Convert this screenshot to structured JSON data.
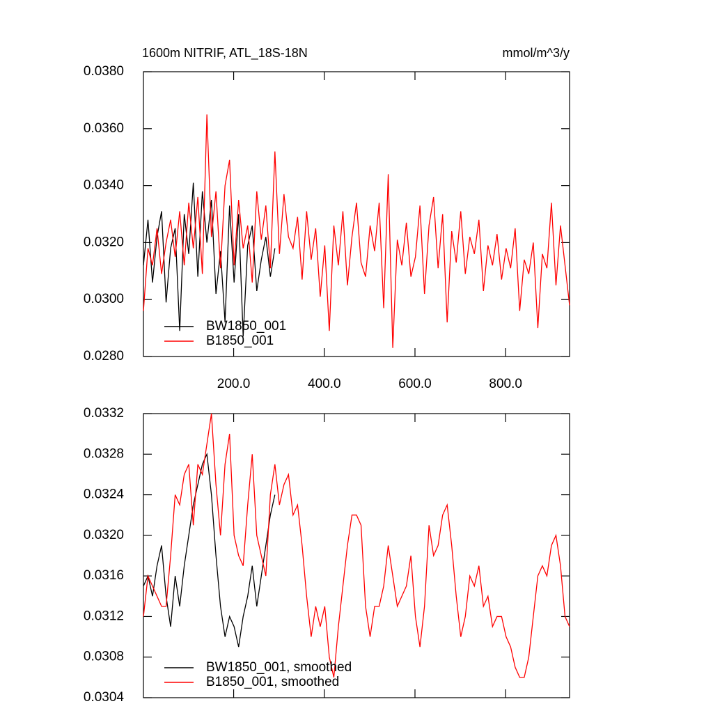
{
  "chart_data": [
    {
      "type": "line",
      "title": "1600m NITRIF, ATL_18S-18N",
      "units": "mmol/m^3/y",
      "legend": "lower left",
      "x": [
        1,
        11,
        21,
        31,
        41,
        51,
        61,
        71,
        81,
        91,
        101,
        111,
        121,
        131,
        141,
        151,
        161,
        171,
        181,
        191,
        201,
        211,
        221,
        231,
        241,
        251,
        261,
        271,
        281,
        291,
        301,
        311,
        321,
        331,
        341,
        351,
        361,
        371,
        381,
        391,
        401,
        411,
        421,
        431,
        441,
        451,
        461,
        471,
        481,
        491,
        501,
        511,
        521,
        531,
        541,
        551,
        561,
        571,
        581,
        591,
        601,
        611,
        621,
        631,
        641,
        651,
        661,
        671,
        681,
        691,
        701,
        711,
        721,
        731,
        741,
        751,
        761,
        771,
        781,
        791,
        801,
        811,
        821,
        831,
        841,
        851,
        861,
        871,
        881,
        891,
        901,
        911,
        921,
        931,
        941
      ],
      "xlim": [
        1,
        941
      ],
      "xticks": [
        {
          "value": 200,
          "label": "200.0"
        },
        {
          "value": 400,
          "label": "400.0"
        },
        {
          "value": 600,
          "label": "600.0"
        },
        {
          "value": 800,
          "label": "800.0"
        }
      ],
      "ylim": [
        0.028,
        0.038
      ],
      "yticks": [
        {
          "value": 0.028,
          "label": "0.0280"
        },
        {
          "value": 0.03,
          "label": "0.0300"
        },
        {
          "value": 0.032,
          "label": "0.0320"
        },
        {
          "value": 0.034,
          "label": "0.0340"
        },
        {
          "value": 0.036,
          "label": "0.0360"
        },
        {
          "value": 0.038,
          "label": "0.0380"
        }
      ],
      "series": [
        {
          "name": "BW1850_001",
          "color": "#000000",
          "values": [
            0.0312,
            0.0328,
            0.0306,
            0.0322,
            0.0331,
            0.0299,
            0.0318,
            0.0325,
            0.0289,
            0.033,
            0.0316,
            0.0341,
            0.0308,
            0.0338,
            0.032,
            0.0335,
            0.0302,
            0.0317,
            0.0292,
            0.0333,
            0.0306,
            0.033,
            0.0287,
            0.0319,
            0.0326,
            0.0303,
            0.0314,
            0.0322,
            0.0308,
            0.0318,
            null,
            null,
            null,
            null,
            null,
            null,
            null,
            null,
            null,
            null,
            null,
            null,
            null,
            null,
            null,
            null,
            null,
            null,
            null,
            null,
            null,
            null,
            null,
            null,
            null,
            null,
            null,
            null,
            null,
            null,
            null,
            null,
            null,
            null,
            null,
            null,
            null,
            null,
            null,
            null,
            null,
            null,
            null,
            null,
            null,
            null,
            null,
            null,
            null,
            null,
            null,
            null,
            null,
            null,
            null,
            null,
            null,
            null,
            null,
            null,
            null,
            null,
            null,
            null,
            null
          ]
        },
        {
          "name": "B1850_001",
          "color": "#ff0000",
          "values": [
            0.0296,
            0.0318,
            0.0312,
            0.0325,
            0.0309,
            0.032,
            0.0328,
            0.0315,
            0.0331,
            0.0312,
            0.0334,
            0.0318,
            0.0336,
            0.0309,
            0.0365,
            0.0322,
            0.0338,
            0.0311,
            0.034,
            0.0349,
            0.0312,
            0.0335,
            0.0318,
            0.0326,
            0.0306,
            0.0338,
            0.0321,
            0.0333,
            0.0311,
            0.0352,
            0.0316,
            0.0337,
            0.0322,
            0.0318,
            0.0329,
            0.0307,
            0.0331,
            0.0314,
            0.0325,
            0.0301,
            0.0319,
            0.0289,
            0.0326,
            0.0312,
            0.0331,
            0.0305,
            0.0322,
            0.0334,
            0.0313,
            0.0308,
            0.0326,
            0.0317,
            0.0334,
            0.0297,
            0.0344,
            0.0283,
            0.0321,
            0.0312,
            0.0327,
            0.0308,
            0.0315,
            0.0333,
            0.0302,
            0.0326,
            0.0336,
            0.0311,
            0.033,
            0.0292,
            0.0324,
            0.0313,
            0.0331,
            0.0309,
            0.0322,
            0.0316,
            0.0328,
            0.0303,
            0.0319,
            0.0312,
            0.0323,
            0.0307,
            0.0318,
            0.0311,
            0.0325,
            0.0296,
            0.0314,
            0.0309,
            0.032,
            0.029,
            0.0316,
            0.0311,
            0.0334,
            0.0305,
            0.0326,
            0.0312,
            0.0298
          ]
        }
      ]
    },
    {
      "type": "line",
      "legend": "lower left",
      "x": [
        1,
        11,
        21,
        31,
        41,
        51,
        61,
        71,
        81,
        91,
        101,
        111,
        121,
        131,
        141,
        151,
        161,
        171,
        181,
        191,
        201,
        211,
        221,
        231,
        241,
        251,
        261,
        271,
        281,
        291,
        301,
        311,
        321,
        331,
        341,
        351,
        361,
        371,
        381,
        391,
        401,
        411,
        421,
        431,
        441,
        451,
        461,
        471,
        481,
        491,
        501,
        511,
        521,
        531,
        541,
        551,
        561,
        571,
        581,
        591,
        601,
        611,
        621,
        631,
        641,
        651,
        661,
        671,
        681,
        691,
        701,
        711,
        721,
        731,
        741,
        751,
        761,
        771,
        781,
        791,
        801,
        811,
        821,
        831,
        841,
        851,
        861,
        871,
        881,
        891,
        901,
        911,
        921,
        931,
        941
      ],
      "xlim": [
        1,
        941
      ],
      "ylim": [
        0.0304,
        0.0332
      ],
      "yticks": [
        {
          "value": 0.0304,
          "label": "0.0304"
        },
        {
          "value": 0.0308,
          "label": "0.0308"
        },
        {
          "value": 0.0312,
          "label": "0.0312"
        },
        {
          "value": 0.0316,
          "label": "0.0316"
        },
        {
          "value": 0.032,
          "label": "0.0320"
        },
        {
          "value": 0.0324,
          "label": "0.0324"
        },
        {
          "value": 0.0328,
          "label": "0.0328"
        },
        {
          "value": 0.0332,
          "label": "0.0332"
        }
      ],
      "series": [
        {
          "name": "BW1850_001, smoothed",
          "color": "#000000",
          "values": [
            0.0315,
            0.0316,
            0.0314,
            0.0317,
            0.0319,
            0.0314,
            0.0311,
            0.0316,
            0.0313,
            0.0317,
            0.032,
            0.0323,
            0.0325,
            0.0327,
            0.0328,
            0.0324,
            0.0318,
            0.0313,
            0.031,
            0.0312,
            0.0311,
            0.0309,
            0.0312,
            0.0314,
            0.0317,
            0.0313,
            0.0316,
            0.0319,
            0.0322,
            0.0324,
            null,
            null,
            null,
            null,
            null,
            null,
            null,
            null,
            null,
            null,
            null,
            null,
            null,
            null,
            null,
            null,
            null,
            null,
            null,
            null,
            null,
            null,
            null,
            null,
            null,
            null,
            null,
            null,
            null,
            null,
            null,
            null,
            null,
            null,
            null,
            null,
            null,
            null,
            null,
            null,
            null,
            null,
            null,
            null,
            null,
            null,
            null,
            null,
            null,
            null,
            null,
            null,
            null,
            null,
            null,
            null,
            null,
            null,
            null,
            null,
            null,
            null,
            null,
            null,
            null
          ]
        },
        {
          "name": "B1850_001, smoothed",
          "color": "#ff0000",
          "values": [
            0.0312,
            0.0316,
            0.0315,
            0.0314,
            0.0313,
            0.0313,
            0.0318,
            0.0324,
            0.0323,
            0.0326,
            0.0327,
            0.0321,
            0.0327,
            0.0326,
            0.0329,
            0.0332,
            0.0325,
            0.032,
            0.0327,
            0.033,
            0.032,
            0.0318,
            0.0317,
            0.0323,
            0.0328,
            0.032,
            0.0318,
            0.0316,
            0.0324,
            0.0327,
            0.0323,
            0.0325,
            0.0326,
            0.0322,
            0.0323,
            0.0319,
            0.0314,
            0.031,
            0.0313,
            0.0311,
            0.0313,
            0.0308,
            0.0306,
            0.0311,
            0.0315,
            0.0319,
            0.0322,
            0.0322,
            0.0321,
            0.0313,
            0.031,
            0.0313,
            0.0313,
            0.0315,
            0.0319,
            0.0316,
            0.0313,
            0.0314,
            0.0315,
            0.0318,
            0.0312,
            0.0309,
            0.0313,
            0.0321,
            0.0318,
            0.0319,
            0.0322,
            0.0323,
            0.0319,
            0.0314,
            0.031,
            0.0312,
            0.0316,
            0.0315,
            0.0317,
            0.0313,
            0.0314,
            0.0311,
            0.0312,
            0.0312,
            0.031,
            0.0309,
            0.0307,
            0.0306,
            0.0306,
            0.0308,
            0.0312,
            0.0316,
            0.0317,
            0.0316,
            0.0319,
            0.032,
            0.0317,
            0.0312,
            0.0311
          ]
        }
      ]
    }
  ]
}
